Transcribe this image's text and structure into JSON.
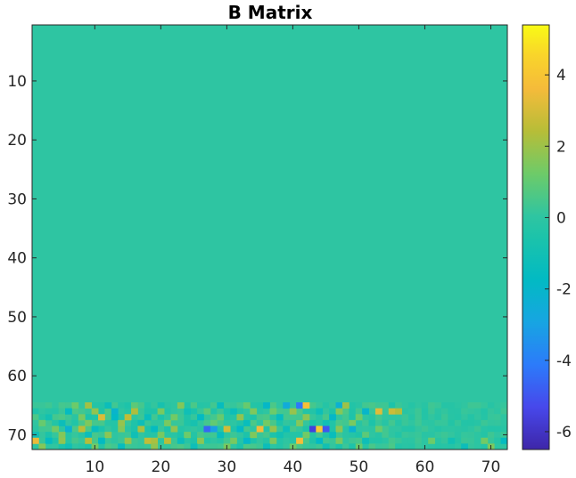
{
  "chart_data": {
    "type": "heatmap",
    "title": "B Matrix",
    "xlabel": "",
    "ylabel": "",
    "rows": 72,
    "cols": 72,
    "x_ticks": [
      10,
      20,
      30,
      40,
      50,
      60,
      70
    ],
    "y_ticks": [
      10,
      20,
      30,
      40,
      50,
      60,
      70
    ],
    "colorbar": {
      "range": [
        -6.5,
        5.4
      ],
      "ticks": [
        4,
        2,
        0,
        -2,
        -4,
        -6
      ],
      "colormap": "parula"
    },
    "background_value": 0,
    "nonzero_row_range": [
      65,
      72
    ],
    "nonzero_blocks": [
      {
        "row": 65,
        "col": 7,
        "value": 1.2
      },
      {
        "row": 65,
        "col": 9,
        "value": 2.1
      },
      {
        "row": 65,
        "col": 12,
        "value": -1.3
      },
      {
        "row": 65,
        "col": 16,
        "value": 0.9
      },
      {
        "row": 65,
        "col": 20,
        "value": -0.8
      },
      {
        "row": 65,
        "col": 23,
        "value": 1.6
      },
      {
        "row": 65,
        "col": 29,
        "value": -1.5
      },
      {
        "row": 65,
        "col": 33,
        "value": 1.1
      },
      {
        "row": 65,
        "col": 36,
        "value": -1.9
      },
      {
        "row": 65,
        "col": 39,
        "value": -2.6
      },
      {
        "row": 65,
        "col": 41,
        "value": -4.2
      },
      {
        "row": 65,
        "col": 42,
        "value": 3.8
      },
      {
        "row": 65,
        "col": 47,
        "value": -2.3
      },
      {
        "row": 65,
        "col": 48,
        "value": 2.0
      },
      {
        "row": 66,
        "col": 6,
        "value": -1.6
      },
      {
        "row": 66,
        "col": 10,
        "value": 1.8
      },
      {
        "row": 66,
        "col": 13,
        "value": -2.1
      },
      {
        "row": 66,
        "col": 16,
        "value": 2.3
      },
      {
        "row": 66,
        "col": 20,
        "value": 1.4
      },
      {
        "row": 66,
        "col": 24,
        "value": -1.1
      },
      {
        "row": 66,
        "col": 27,
        "value": 0.9
      },
      {
        "row": 66,
        "col": 31,
        "value": -1.3
      },
      {
        "row": 66,
        "col": 34,
        "value": 1.5
      },
      {
        "row": 66,
        "col": 37,
        "value": 1.2
      },
      {
        "row": 66,
        "col": 40,
        "value": 1.9
      },
      {
        "row": 66,
        "col": 44,
        "value": -1.2
      },
      {
        "row": 66,
        "col": 47,
        "value": 1.6
      },
      {
        "row": 66,
        "col": 51,
        "value": -2.0
      },
      {
        "row": 66,
        "col": 53,
        "value": 3.2
      },
      {
        "row": 66,
        "col": 55,
        "value": 2.8
      },
      {
        "row": 66,
        "col": 56,
        "value": 2.4
      },
      {
        "row": 67,
        "col": 3,
        "value": -0.9
      },
      {
        "row": 67,
        "col": 8,
        "value": 1.4
      },
      {
        "row": 67,
        "col": 11,
        "value": 3.1
      },
      {
        "row": 67,
        "col": 13,
        "value": -1.8
      },
      {
        "row": 67,
        "col": 15,
        "value": 2.6
      },
      {
        "row": 67,
        "col": 18,
        "value": -1.4
      },
      {
        "row": 67,
        "col": 22,
        "value": 1.3
      },
      {
        "row": 67,
        "col": 26,
        "value": -1.7
      },
      {
        "row": 67,
        "col": 29,
        "value": 1.1
      },
      {
        "row": 67,
        "col": 32,
        "value": 1.8
      },
      {
        "row": 67,
        "col": 38,
        "value": -1.5
      },
      {
        "row": 67,
        "col": 42,
        "value": 1.7
      },
      {
        "row": 67,
        "col": 46,
        "value": -1.9
      },
      {
        "row": 67,
        "col": 50,
        "value": 1.2
      },
      {
        "row": 68,
        "col": 2,
        "value": 1.1
      },
      {
        "row": 68,
        "col": 5,
        "value": -1.3
      },
      {
        "row": 68,
        "col": 9,
        "value": 1.5
      },
      {
        "row": 68,
        "col": 14,
        "value": 1.9
      },
      {
        "row": 68,
        "col": 17,
        "value": -1.2
      },
      {
        "row": 68,
        "col": 21,
        "value": 1.4
      },
      {
        "row": 68,
        "col": 25,
        "value": -0.8
      },
      {
        "row": 68,
        "col": 28,
        "value": 1.0
      },
      {
        "row": 68,
        "col": 33,
        "value": -1.4
      },
      {
        "row": 68,
        "col": 36,
        "value": 1.3
      },
      {
        "row": 68,
        "col": 41,
        "value": 1.6
      },
      {
        "row": 68,
        "col": 45,
        "value": -1.1
      },
      {
        "row": 68,
        "col": 49,
        "value": 1.4
      },
      {
        "row": 69,
        "col": 4,
        "value": 1.3
      },
      {
        "row": 69,
        "col": 6,
        "value": -2.2
      },
      {
        "row": 69,
        "col": 8,
        "value": 2.5
      },
      {
        "row": 69,
        "col": 10,
        "value": -1.4
      },
      {
        "row": 69,
        "col": 14,
        "value": 1.6
      },
      {
        "row": 69,
        "col": 17,
        "value": 2.2
      },
      {
        "row": 69,
        "col": 19,
        "value": -1.6
      },
      {
        "row": 69,
        "col": 22,
        "value": 1.8
      },
      {
        "row": 69,
        "col": 27,
        "value": -4.6
      },
      {
        "row": 69,
        "col": 28,
        "value": -3.1
      },
      {
        "row": 69,
        "col": 30,
        "value": 2.9
      },
      {
        "row": 69,
        "col": 32,
        "value": -1.8
      },
      {
        "row": 69,
        "col": 35,
        "value": 3.6
      },
      {
        "row": 69,
        "col": 37,
        "value": 1.9
      },
      {
        "row": 69,
        "col": 39,
        "value": -1.2
      },
      {
        "row": 69,
        "col": 43,
        "value": -5.6
      },
      {
        "row": 69,
        "col": 44,
        "value": 4.1
      },
      {
        "row": 69,
        "col": 45,
        "value": -5.0
      },
      {
        "row": 69,
        "col": 47,
        "value": 1.7
      },
      {
        "row": 69,
        "col": 49,
        "value": -2.2
      },
      {
        "row": 69,
        "col": 53,
        "value": 1.2
      },
      {
        "row": 70,
        "col": 1,
        "value": -1.2
      },
      {
        "row": 70,
        "col": 5,
        "value": 1.6
      },
      {
        "row": 70,
        "col": 9,
        "value": -1.3
      },
      {
        "row": 70,
        "col": 12,
        "value": 1.7
      },
      {
        "row": 70,
        "col": 16,
        "value": -1.1
      },
      {
        "row": 70,
        "col": 20,
        "value": 1.4
      },
      {
        "row": 70,
        "col": 24,
        "value": 1.2
      },
      {
        "row": 70,
        "col": 29,
        "value": -1.5
      },
      {
        "row": 70,
        "col": 34,
        "value": 1.5
      },
      {
        "row": 70,
        "col": 38,
        "value": -1.0
      },
      {
        "row": 70,
        "col": 42,
        "value": 1.3
      },
      {
        "row": 70,
        "col": 46,
        "value": -1.4
      },
      {
        "row": 70,
        "col": 51,
        "value": 0.9
      },
      {
        "row": 71,
        "col": 1,
        "value": 3.4
      },
      {
        "row": 71,
        "col": 3,
        "value": -1.6
      },
      {
        "row": 71,
        "col": 5,
        "value": 1.8
      },
      {
        "row": 71,
        "col": 9,
        "value": 2.4
      },
      {
        "row": 71,
        "col": 11,
        "value": -1.7
      },
      {
        "row": 71,
        "col": 15,
        "value": 1.9
      },
      {
        "row": 71,
        "col": 18,
        "value": 2.6
      },
      {
        "row": 71,
        "col": 19,
        "value": 2.2
      },
      {
        "row": 71,
        "col": 21,
        "value": 2.5
      },
      {
        "row": 71,
        "col": 23,
        "value": -1.3
      },
      {
        "row": 71,
        "col": 26,
        "value": 1.7
      },
      {
        "row": 71,
        "col": 31,
        "value": 1.4
      },
      {
        "row": 71,
        "col": 33,
        "value": -1.9
      },
      {
        "row": 71,
        "col": 37,
        "value": 1.5
      },
      {
        "row": 71,
        "col": 41,
        "value": 3.7
      },
      {
        "row": 71,
        "col": 44,
        "value": -1.8
      },
      {
        "row": 71,
        "col": 47,
        "value": 1.4
      },
      {
        "row": 71,
        "col": 51,
        "value": -1.2
      },
      {
        "row": 71,
        "col": 61,
        "value": 1.2
      },
      {
        "row": 71,
        "col": 64,
        "value": -1.0
      },
      {
        "row": 71,
        "col": 69,
        "value": 1.3
      },
      {
        "row": 71,
        "col": 72,
        "value": -1.6
      },
      {
        "row": 72,
        "col": 2,
        "value": 1.6
      },
      {
        "row": 72,
        "col": 6,
        "value": -1.1
      },
      {
        "row": 72,
        "col": 10,
        "value": 1.3
      },
      {
        "row": 72,
        "col": 14,
        "value": -1.5
      },
      {
        "row": 72,
        "col": 19,
        "value": 1.8
      },
      {
        "row": 72,
        "col": 25,
        "value": -1.2
      },
      {
        "row": 72,
        "col": 30,
        "value": 1.4
      },
      {
        "row": 72,
        "col": 36,
        "value": -1.3
      },
      {
        "row": 72,
        "col": 40,
        "value": 1.2
      },
      {
        "row": 72,
        "col": 45,
        "value": -1.0
      },
      {
        "row": 72,
        "col": 50,
        "value": 1.1
      },
      {
        "row": 72,
        "col": 66,
        "value": -1.3
      },
      {
        "row": 72,
        "col": 70,
        "value": 1.5
      }
    ]
  }
}
